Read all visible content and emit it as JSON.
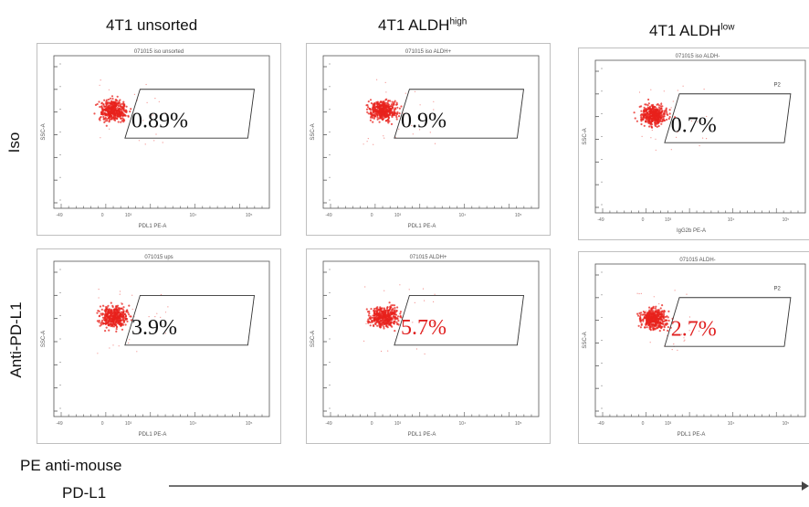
{
  "chart_data": {
    "type": "scatter",
    "columns": [
      {
        "prefix": "4T1 unsorted",
        "sup": ""
      },
      {
        "prefix": "4T1 ALDH",
        "sup": "high"
      },
      {
        "prefix": "4T1 ALDH",
        "sup": "low"
      }
    ],
    "rows": [
      "Iso",
      "Anti-PD-L1"
    ],
    "x_label_line1": "PE anti-mouse",
    "x_label_line2": "PD-L1",
    "panels": [
      {
        "row": 0,
        "col": 0,
        "sample": "071015 iso unsorted",
        "xaxis": "PDL1 PE-A",
        "yaxis": "SSC-A",
        "gate_value": "0.89%",
        "gate_color": "#111111",
        "extra": ""
      },
      {
        "row": 0,
        "col": 1,
        "sample": "071015 iso ALDH+",
        "xaxis": "PDL1 PE-A",
        "yaxis": "SSC-A",
        "gate_value": "0.9%",
        "gate_color": "#111111",
        "extra": ""
      },
      {
        "row": 0,
        "col": 2,
        "sample": "071015 iso ALDH-",
        "xaxis": "IgG2b PE-A",
        "yaxis": "SSC-A",
        "gate_value": "0.7%",
        "gate_color": "#111111",
        "extra": "P2"
      },
      {
        "row": 1,
        "col": 0,
        "sample": "071015 ups",
        "xaxis": "PDL1 PE-A",
        "yaxis": "SSC-A",
        "gate_value": "3.9%",
        "gate_color": "#111111",
        "extra": ""
      },
      {
        "row": 1,
        "col": 1,
        "sample": "071015 ALDH+",
        "xaxis": "PDL1 PE-A",
        "yaxis": "SSC-A",
        "gate_value": "5.7%",
        "gate_color": "#e02020",
        "extra": ""
      },
      {
        "row": 1,
        "col": 2,
        "sample": "071015 ALDH-",
        "xaxis": "PDL1 PE-A",
        "yaxis": "SSC-A",
        "gate_value": "2.7%",
        "gate_color": "#e02020",
        "extra": "P2"
      }
    ],
    "point_color": "#e8221c"
  }
}
